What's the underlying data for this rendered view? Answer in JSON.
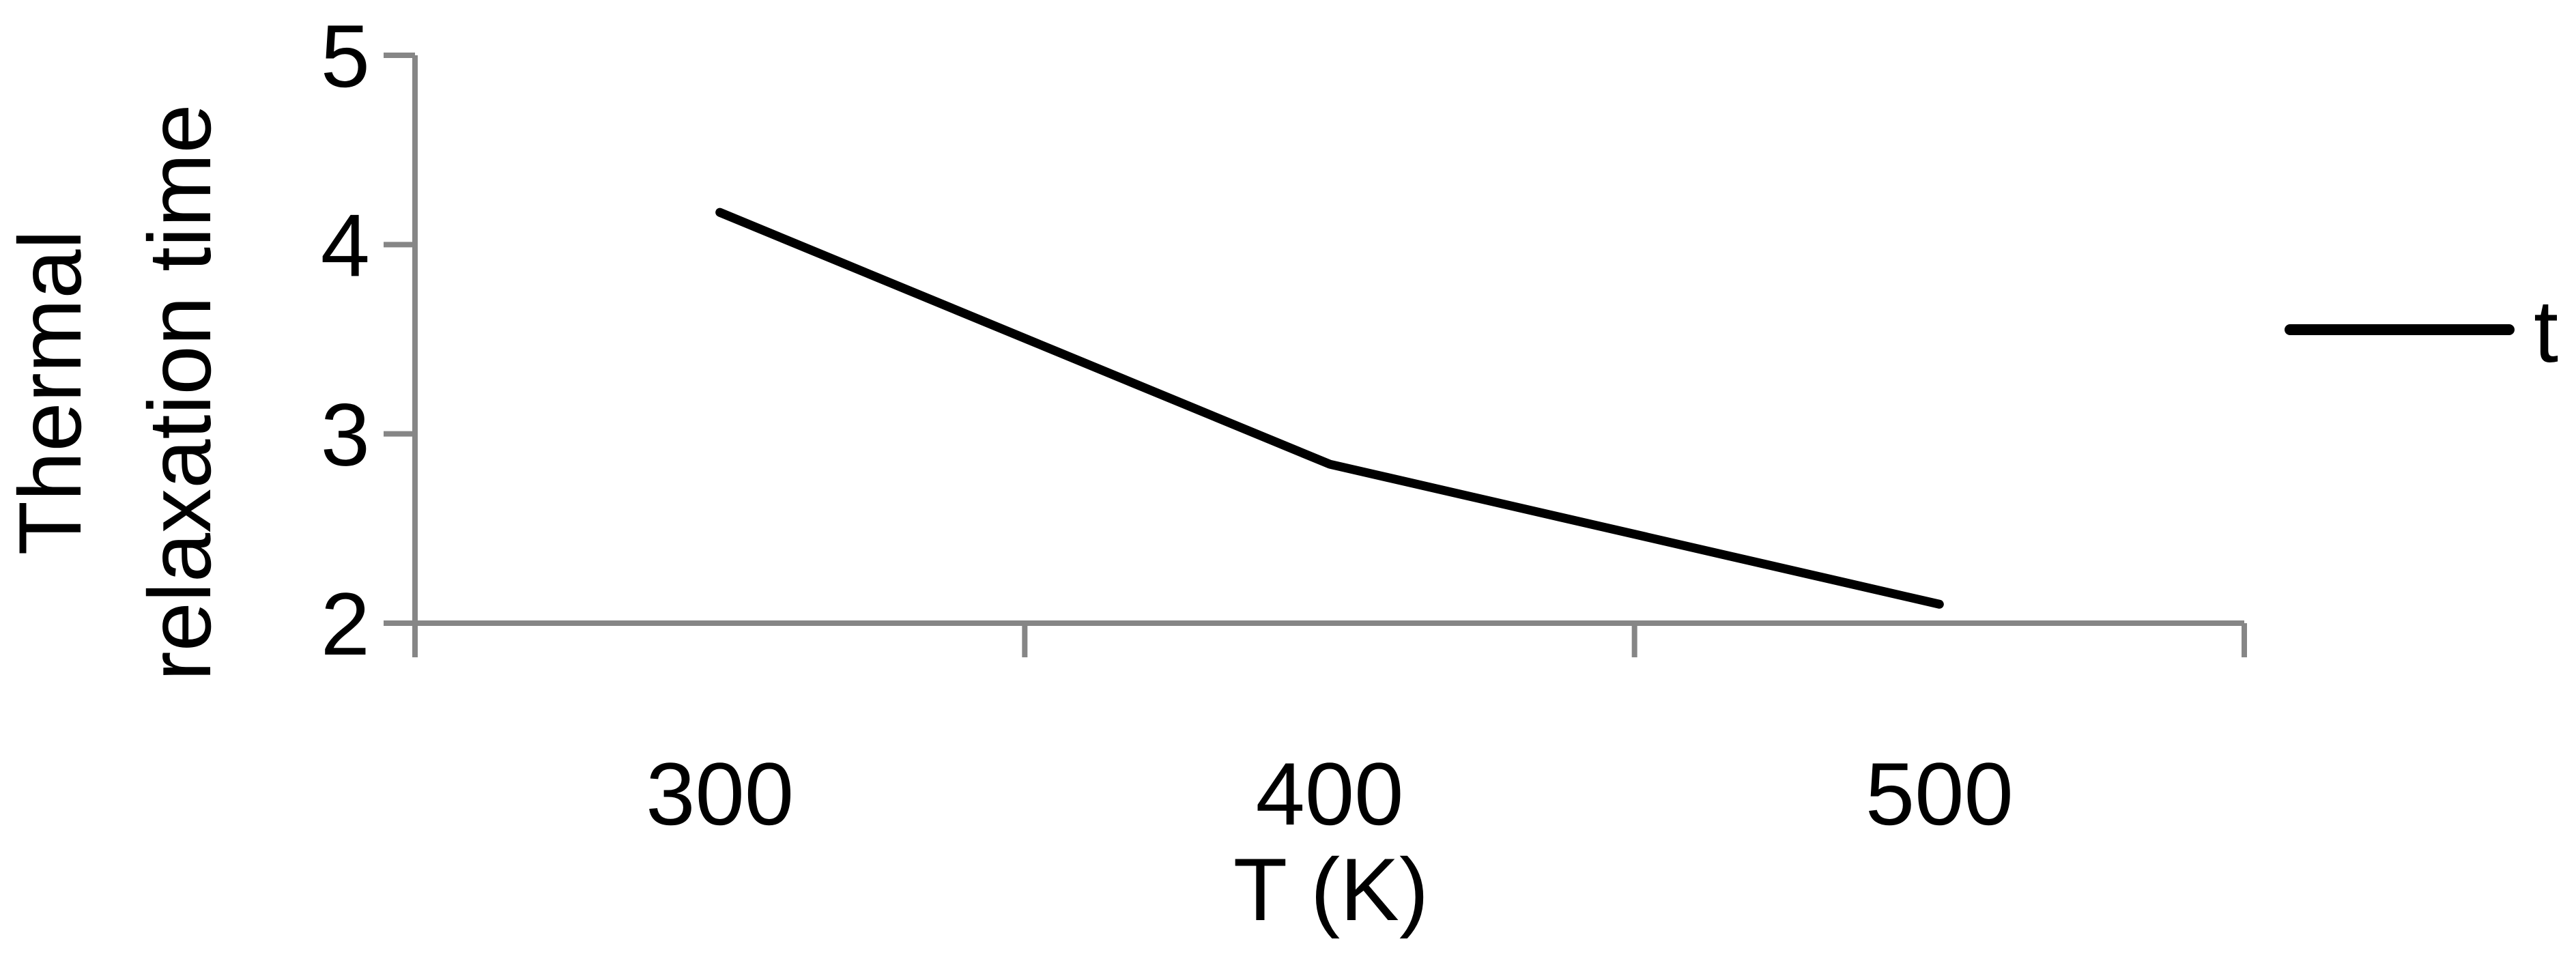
{
  "chart_data": {
    "type": "line",
    "categories": [
      "300",
      "400",
      "500"
    ],
    "series": [
      {
        "name": "t",
        "values": [
          4.17,
          2.84,
          2.1
        ],
        "color": "#000000"
      }
    ],
    "xlabel": "T (K)",
    "ylabel_lines": [
      "Thermal",
      "relaxation time"
    ],
    "ylim": [
      2,
      5
    ],
    "yticks": [
      "2",
      "3",
      "4",
      "5"
    ],
    "grid": false,
    "legend_position": "right",
    "axis_color": "#868686"
  }
}
